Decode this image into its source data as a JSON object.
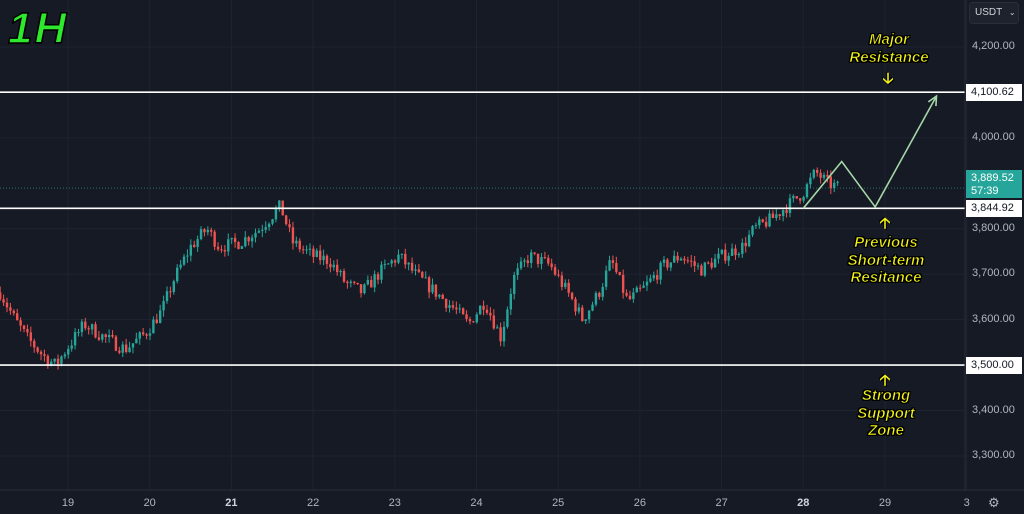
{
  "timeframe": "1H",
  "currency": "USDT",
  "current_price": "3,889.52",
  "countdown": "57:39",
  "colors": {
    "up": "#26a69a",
    "down": "#ef5350",
    "projection": "#a5d6a7",
    "annotation": "#f5f51a",
    "timeframe": "#2ee82e"
  },
  "annotations": {
    "major_resistance": [
      "Major",
      "Resistance"
    ],
    "prev_resistance": [
      "Previous",
      "Short-term",
      "Resitance"
    ],
    "support": [
      "Strong",
      "Support",
      "Zone"
    ]
  },
  "chart_data": {
    "type": "candlestick",
    "ylim": [
      3250,
      4260
    ],
    "xlim": [
      18.17,
      29.95
    ],
    "y_ticks": [
      {
        "v": 4200,
        "l": "4,200.00"
      },
      {
        "v": 4000,
        "l": "4,000.00"
      },
      {
        "v": 3800,
        "l": "3,800.00"
      },
      {
        "v": 3700,
        "l": "3,700.00"
      },
      {
        "v": 3600,
        "l": "3,600.00"
      },
      {
        "v": 3400,
        "l": "3,400.00"
      },
      {
        "v": 3300,
        "l": "3,300.00"
      }
    ],
    "x_ticks": [
      {
        "v": 19,
        "l": "19"
      },
      {
        "v": 20,
        "l": "20"
      },
      {
        "v": 21,
        "l": "21",
        "bold": true
      },
      {
        "v": 22,
        "l": "22"
      },
      {
        "v": 23,
        "l": "23"
      },
      {
        "v": 24,
        "l": "24"
      },
      {
        "v": 25,
        "l": "25"
      },
      {
        "v": 26,
        "l": "26"
      },
      {
        "v": 27,
        "l": "27"
      },
      {
        "v": 28,
        "l": "28",
        "bold": true
      },
      {
        "v": 29,
        "l": "29"
      },
      {
        "v": 30,
        "l": "3"
      }
    ],
    "levels": [
      {
        "v": 4100.62,
        "l": "4,100.62"
      },
      {
        "v": 3844.92,
        "l": "3,844.92"
      },
      {
        "v": 3500,
        "l": "3,500.00"
      }
    ],
    "price_path": [
      [
        18.17,
        3660
      ],
      [
        18.35,
        3600
      ],
      [
        18.5,
        3560
      ],
      [
        18.7,
        3520
      ],
      [
        18.85,
        3500
      ],
      [
        19.0,
        3540
      ],
      [
        19.2,
        3590
      ],
      [
        19.45,
        3560
      ],
      [
        19.7,
        3535
      ],
      [
        19.95,
        3570
      ],
      [
        20.15,
        3620
      ],
      [
        20.3,
        3690
      ],
      [
        20.5,
        3760
      ],
      [
        20.7,
        3800
      ],
      [
        20.85,
        3760
      ],
      [
        21.1,
        3770
      ],
      [
        21.35,
        3800
      ],
      [
        21.6,
        3850
      ],
      [
        21.75,
        3770
      ],
      [
        22.0,
        3740
      ],
      [
        22.2,
        3730
      ],
      [
        22.4,
        3680
      ],
      [
        22.6,
        3660
      ],
      [
        22.85,
        3710
      ],
      [
        23.05,
        3740
      ],
      [
        23.25,
        3700
      ],
      [
        23.5,
        3660
      ],
      [
        23.75,
        3620
      ],
      [
        23.9,
        3590
      ],
      [
        24.1,
        3640
      ],
      [
        24.3,
        3560
      ],
      [
        24.45,
        3690
      ],
      [
        24.65,
        3740
      ],
      [
        24.9,
        3720
      ],
      [
        25.15,
        3650
      ],
      [
        25.3,
        3600
      ],
      [
        25.5,
        3660
      ],
      [
        25.65,
        3730
      ],
      [
        25.85,
        3640
      ],
      [
        26.05,
        3670
      ],
      [
        26.3,
        3720
      ],
      [
        26.5,
        3740
      ],
      [
        26.75,
        3710
      ],
      [
        27.0,
        3740
      ],
      [
        27.25,
        3760
      ],
      [
        27.4,
        3800
      ],
      [
        27.6,
        3820
      ],
      [
        27.8,
        3850
      ],
      [
        28.0,
        3880
      ],
      [
        28.15,
        3925
      ],
      [
        28.3,
        3900
      ],
      [
        28.45,
        3889.52
      ]
    ],
    "projection": [
      [
        28.0,
        3845
      ],
      [
        28.47,
        3948
      ],
      [
        28.88,
        3848
      ],
      [
        29.63,
        4092
      ]
    ]
  }
}
